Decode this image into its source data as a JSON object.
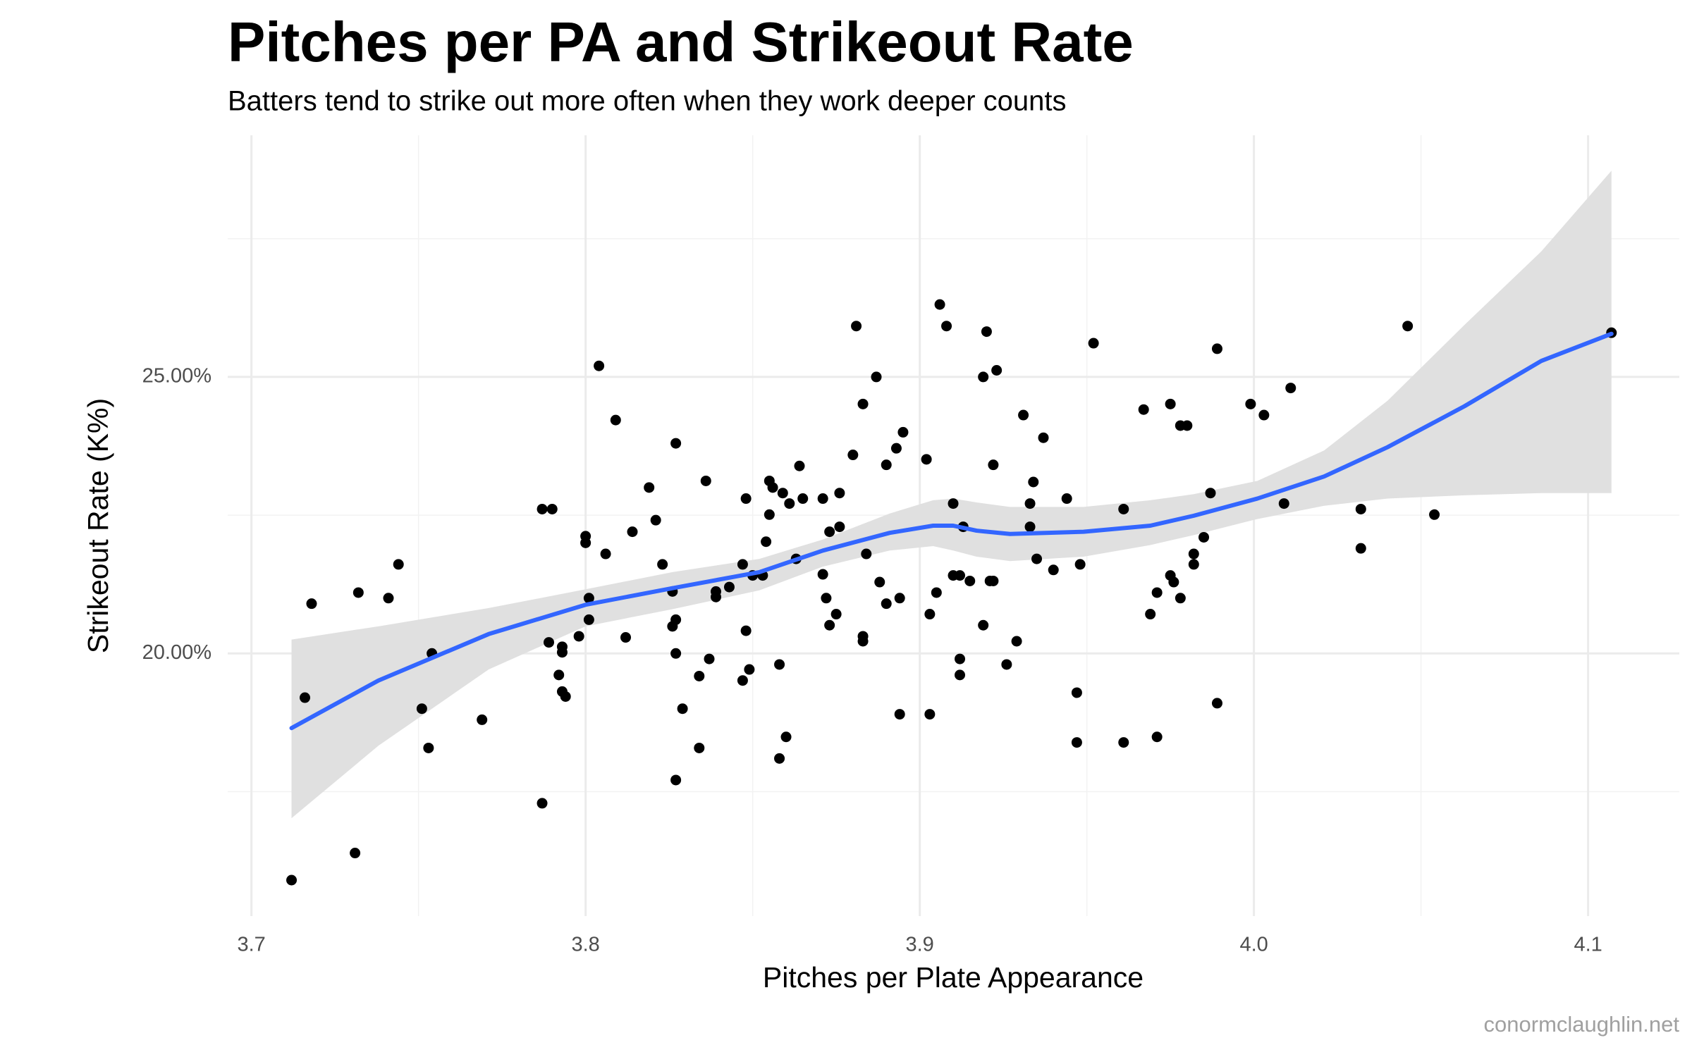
{
  "chart_data": {
    "type": "scatter",
    "title": "Pitches per PA and Strikeout Rate",
    "subtitle": "Batters tend to strike out more often when they work deeper counts",
    "x_label": "Pitches per Plate Appearance",
    "y_label": "Strikeout Rate (K%)",
    "caption": "conormclaughlin.net",
    "xlim": [
      3.6929,
      4.1273
    ],
    "ylim": [
      15.25,
      29.37
    ],
    "xticks": [
      3.7,
      3.8,
      3.9,
      {
        "value": 4,
        "label": "4.0"
      },
      4.1
    ],
    "yticks": [
      {
        "value": 20,
        "label": "20.00%"
      },
      {
        "value": 25,
        "label": "25.00%"
      }
    ],
    "xminor": [
      3.75,
      3.85,
      3.95,
      4.05
    ],
    "yminor": [
      17.5,
      22.5,
      27.5
    ],
    "grid": true,
    "series": [
      {
        "color": "#000000",
        "x": [
          3.712,
          3.716,
          3.718,
          3.731,
          3.732,
          3.741,
          3.744,
          3.751,
          3.753,
          3.754,
          3.769,
          3.787,
          3.787,
          3.79,
          3.789,
          3.793,
          3.793,
          3.792,
          3.793,
          3.794,
          3.798,
          3.8,
          3.8,
          3.801,
          3.801,
          3.804,
          3.806,
          3.809,
          3.812,
          3.814,
          3.819,
          3.821,
          3.823,
          3.826,
          3.826,
          3.827,
          3.827,
          3.827,
          3.827,
          3.829,
          3.834,
          3.834,
          3.836,
          3.837,
          3.839,
          3.839,
          3.843,
          3.847,
          3.848,
          3.848,
          3.847,
          3.849,
          3.85,
          3.853,
          3.854,
          3.855,
          3.855,
          3.856,
          3.858,
          3.858,
          3.859,
          3.86,
          3.861,
          3.863,
          3.864,
          3.865,
          3.871,
          3.871,
          3.872,
          3.873,
          3.873,
          3.875,
          3.876,
          3.876,
          3.88,
          3.881,
          3.883,
          3.883,
          3.883,
          3.884,
          3.887,
          3.888,
          3.89,
          3.89,
          3.893,
          3.894,
          3.894,
          3.895,
          3.902,
          3.903,
          3.903,
          3.905,
          3.906,
          3.908,
          3.91,
          3.91,
          3.912,
          3.912,
          3.912,
          3.913,
          3.915,
          3.919,
          3.919,
          3.92,
          3.921,
          3.922,
          3.922,
          3.923,
          3.926,
          3.929,
          3.931,
          3.933,
          3.933,
          3.934,
          3.935,
          3.937,
          3.94,
          3.944,
          3.947,
          3.947,
          3.948,
          3.952,
          3.961,
          3.961,
          3.967,
          3.969,
          3.971,
          3.971,
          3.975,
          3.975,
          3.976,
          3.978,
          3.978,
          3.98,
          3.982,
          3.982,
          3.985,
          3.987,
          3.989,
          3.989,
          3.999,
          4.003,
          4.009,
          4.011,
          4.032,
          4.032,
          4.046,
          4.054,
          4.107
        ],
        "values": [
          15.9,
          19.2,
          20.9,
          16.39,
          21.1,
          21.0,
          21.61,
          19.0,
          18.29,
          20.0,
          18.8,
          17.29,
          22.61,
          22.61,
          20.2,
          20.12,
          20.02,
          19.61,
          19.31,
          19.22,
          20.31,
          22.12,
          22.0,
          21.0,
          20.61,
          25.2,
          21.8,
          24.22,
          20.29,
          22.2,
          23.0,
          22.41,
          21.61,
          20.49,
          21.12,
          23.8,
          17.71,
          20.0,
          20.61,
          19.0,
          18.29,
          19.59,
          23.12,
          19.9,
          21.02,
          21.12,
          21.2,
          19.51,
          20.41,
          22.8,
          21.61,
          19.71,
          21.41,
          21.41,
          22.02,
          22.51,
          23.12,
          23.0,
          18.1,
          19.8,
          22.9,
          18.49,
          22.71,
          21.71,
          23.39,
          22.8,
          22.8,
          21.43,
          21.0,
          20.51,
          22.2,
          20.71,
          22.29,
          22.9,
          23.59,
          25.92,
          20.31,
          20.22,
          24.51,
          21.8,
          25.0,
          21.29,
          20.9,
          23.41,
          23.71,
          21.0,
          18.9,
          24.0,
          23.51,
          20.71,
          18.9,
          21.1,
          26.31,
          25.92,
          22.71,
          21.41,
          21.41,
          19.9,
          19.61,
          22.29,
          21.31,
          20.51,
          25.0,
          25.82,
          21.31,
          21.31,
          23.41,
          25.12,
          19.8,
          20.22,
          24.31,
          22.29,
          22.71,
          23.1,
          21.71,
          23.9,
          21.51,
          22.8,
          19.29,
          18.39,
          21.61,
          25.61,
          22.61,
          18.39,
          24.41,
          20.71,
          18.49,
          21.1,
          24.51,
          21.41,
          21.29,
          21.0,
          24.12,
          24.12,
          21.8,
          21.61,
          22.1,
          22.9,
          25.51,
          19.1,
          24.51,
          24.31,
          22.71,
          24.8,
          22.61,
          21.9,
          25.92,
          22.51,
          25.8
        ]
      }
    ],
    "trend": {
      "color": "#3366ff",
      "band_color": "#e0e0e0",
      "x": [
        3.712,
        3.738,
        3.771,
        3.8,
        3.826,
        3.852,
        3.871,
        3.891,
        3.904,
        3.91,
        3.917,
        3.927,
        3.949,
        3.969,
        3.982,
        4.001,
        4.021,
        4.04,
        4.063,
        4.086,
        4.107
      ],
      "values": [
        18.65,
        19.51,
        20.35,
        20.88,
        21.18,
        21.47,
        21.86,
        22.18,
        22.31,
        22.31,
        22.22,
        22.16,
        22.2,
        22.31,
        22.49,
        22.8,
        23.2,
        23.73,
        24.47,
        25.29,
        25.78
      ],
      "upper": [
        20.25,
        20.49,
        20.82,
        21.16,
        21.47,
        21.71,
        22.06,
        22.53,
        22.77,
        22.8,
        22.73,
        22.65,
        22.65,
        22.77,
        22.88,
        23.12,
        23.67,
        24.57,
        25.94,
        27.27,
        28.73
      ],
      "lower": [
        17.02,
        18.33,
        19.71,
        20.49,
        20.8,
        21.14,
        21.57,
        21.86,
        21.94,
        21.86,
        21.75,
        21.67,
        21.75,
        21.96,
        22.14,
        22.43,
        22.67,
        22.8,
        22.86,
        22.9,
        22.9
      ]
    }
  }
}
